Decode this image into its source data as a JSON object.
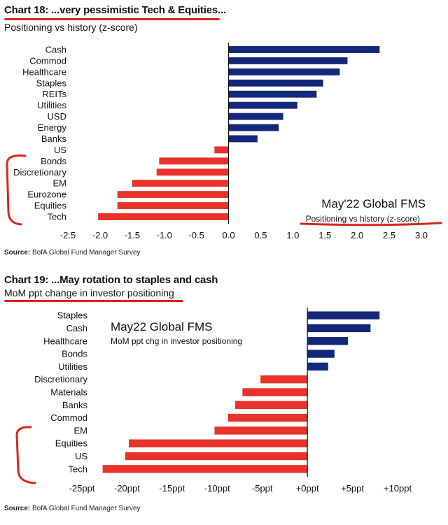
{
  "chart_data": [
    {
      "type": "bar",
      "orientation": "horizontal",
      "title": "Chart 18: ...very pessimistic Tech & Equities...",
      "subtitle": "Positioning vs history (z-score)",
      "annotation_title": "May'22 Global FMS",
      "annotation_subtitle": "Positioning vs history (z-score)",
      "source_label": "Source:",
      "source": "BofA Global Fund Manager Survey",
      "categories": [
        "Cash",
        "Commod",
        "Healthcare",
        "Staples",
        "REITs",
        "Utilities",
        "USD",
        "Energy",
        "Banks",
        "US",
        "Bonds",
        "Discretionary",
        "EM",
        "Eurozone",
        "Equities",
        "Tech"
      ],
      "values": [
        2.35,
        1.85,
        1.73,
        1.47,
        1.37,
        1.07,
        0.85,
        0.78,
        0.45,
        -0.22,
        -1.08,
        -1.12,
        -1.5,
        -1.73,
        -1.73,
        -2.03
      ],
      "xlim": [
        -2.5,
        3.0
      ],
      "xticks": [
        "-2.5",
        "-2.0",
        "-1.5",
        "-1.0",
        "-0.5",
        "0.0",
        "0.5",
        "1.0",
        "1.5",
        "2.0",
        "2.5",
        "3.0"
      ],
      "xtick_values": [
        -2.5,
        -2.0,
        -1.5,
        -1.0,
        -0.5,
        0.0,
        0.5,
        1.0,
        1.5,
        2.0,
        2.5,
        3.0
      ],
      "colors": {
        "positive": "#13287a",
        "negative": "#e8322a",
        "highlight": "#d9261c"
      }
    },
    {
      "type": "bar",
      "orientation": "horizontal",
      "title": "Chart 19: ...May rotation to staples and cash",
      "subtitle": "MoM ppt change in investor positioning",
      "annotation_title": "May22 Global FMS",
      "annotation_subtitle": "MoM ppt chg in investor positioning",
      "source_label": "Source:",
      "source": "BofA Global Fund Manager Survey",
      "categories": [
        "Staples",
        "Cash",
        "Healthcare",
        "Bonds",
        "Utilities",
        "Discretionary",
        "Materials",
        "Banks",
        "Commod",
        "EM",
        "Equities",
        "US",
        "Tech"
      ],
      "values": [
        8.0,
        7.0,
        4.5,
        3.0,
        2.3,
        -5.2,
        -7.2,
        -8.0,
        -8.8,
        -10.3,
        -19.8,
        -20.2,
        -22.7
      ],
      "xlim": [
        -25,
        10
      ],
      "xticks": [
        "-25ppt",
        "-20ppt",
        "-15ppt",
        "-10ppt",
        "-5ppt",
        "+0ppt",
        "+5ppt",
        "+10ppt"
      ],
      "xtick_values": [
        -25,
        -20,
        -15,
        -10,
        -5,
        0,
        5,
        10
      ],
      "colors": {
        "positive": "#13287a",
        "negative": "#e8322a",
        "highlight": "#d9261c"
      }
    }
  ]
}
